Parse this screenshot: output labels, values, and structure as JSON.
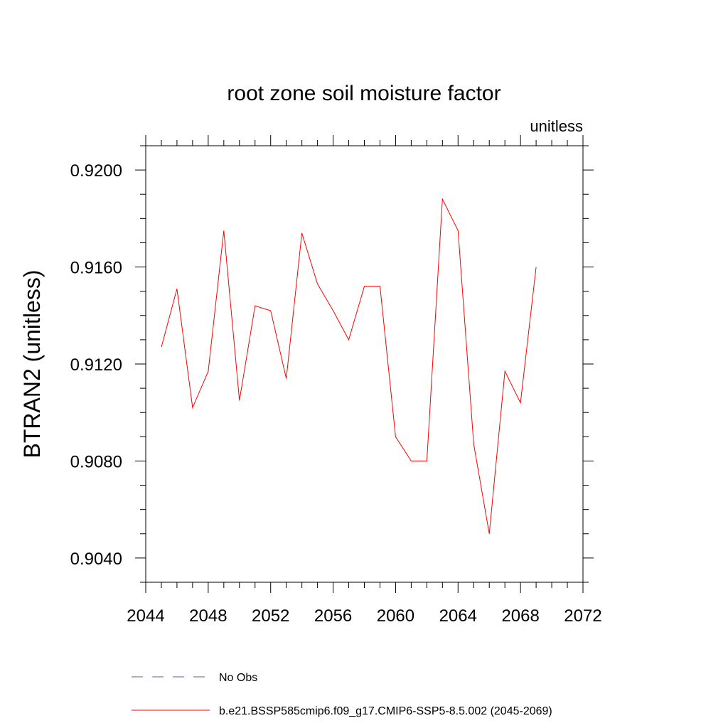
{
  "chart_data": {
    "type": "line",
    "title": "root zone soil moisture factor",
    "units_label": "unitless",
    "ylabel": "BTRAN2  (unitless)",
    "xlabel": "",
    "xlim": [
      2044,
      2072
    ],
    "ylim": [
      0.903,
      0.921
    ],
    "x_ticks": [
      "2044",
      "2048",
      "2052",
      "2056",
      "2060",
      "2064",
      "2068",
      "2072"
    ],
    "y_ticks": [
      "0.9040",
      "0.9080",
      "0.9120",
      "0.9160",
      "0.9200"
    ],
    "x": [
      2045,
      2046,
      2047,
      2048,
      2049,
      2050,
      2051,
      2052,
      2053,
      2054,
      2055,
      2056,
      2057,
      2058,
      2059,
      2060,
      2061,
      2062,
      2063,
      2064,
      2065,
      2066,
      2067,
      2068,
      2069
    ],
    "series": [
      {
        "name": "b.e21.BSSP585cmip6.f09_g17.CMIP6-SSP5-8.5.002 (2045-2069)",
        "color": "#ff0000",
        "values": [
          0.9127,
          0.9151,
          0.9102,
          0.9117,
          0.9175,
          0.9105,
          0.9144,
          0.9142,
          0.9114,
          0.9174,
          0.9153,
          0.9142,
          0.913,
          0.9152,
          0.9152,
          0.909,
          0.908,
          0.908,
          0.9188,
          0.9175,
          0.9087,
          0.905,
          0.9117,
          0.9104,
          0.916
        ]
      }
    ],
    "legend": [
      {
        "label": "No Obs",
        "color": "#5a5aa0",
        "style": "dashed"
      },
      {
        "label": "b.e21.BSSP585cmip6.f09_g17.CMIP6-SSP5-8.5.002 (2045-2069)",
        "color": "#ff0000",
        "style": "solid"
      }
    ],
    "legend_position": "bottom",
    "grid": false
  }
}
